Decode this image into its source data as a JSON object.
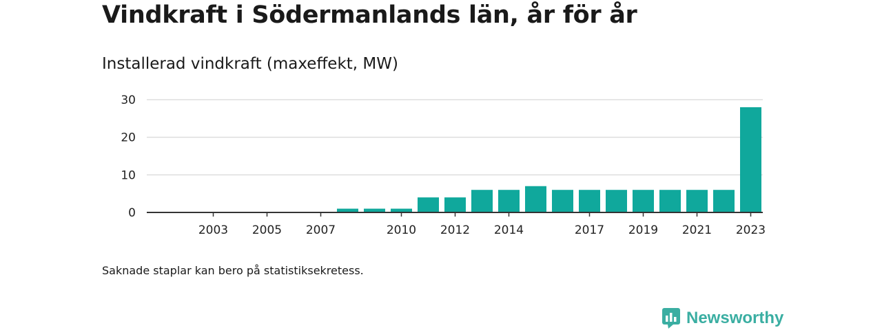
{
  "title": "Vindkraft i Södermanlands län, år för år",
  "subtitle": "Installerad vindkraft (maxeffekt, MW)",
  "footnote": "Saknade staplar kan bero på statistiksekretess.",
  "brand": {
    "name": "Newsworthy",
    "icon": "newsworthy-logo-icon",
    "color": "#3aaea2"
  },
  "colors": {
    "bar": "#10a89c",
    "grid": "#dddddd",
    "axis": "#333333"
  },
  "chart_data": {
    "type": "bar",
    "title": "Vindkraft i Södermanlands län, år för år",
    "subtitle": "Installerad vindkraft (maxeffekt, MW)",
    "xlabel": "",
    "ylabel": "",
    "categories": [
      "2002",
      "2003",
      "2004",
      "2005",
      "2006",
      "2007",
      "2008",
      "2009",
      "2010",
      "2011",
      "2012",
      "2013",
      "2014",
      "2015",
      "2016",
      "2017",
      "2018",
      "2019",
      "2020",
      "2021",
      "2022",
      "2023"
    ],
    "x_tick_labels": [
      "2003",
      "2005",
      "2007",
      "2010",
      "2012",
      "2014",
      "2017",
      "2019",
      "2021",
      "2023"
    ],
    "values": [
      0,
      0,
      0,
      0,
      0,
      0,
      1,
      1,
      1,
      4,
      4,
      6,
      6,
      7,
      6,
      6,
      6,
      6,
      6,
      6,
      6,
      28
    ],
    "y_ticks": [
      0,
      10,
      20,
      30
    ],
    "ylim": [
      0,
      30
    ],
    "grid": true,
    "legend": "none"
  }
}
